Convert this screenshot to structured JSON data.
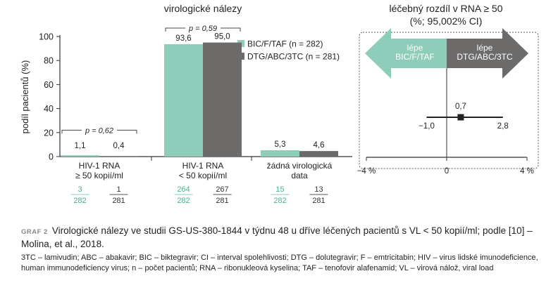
{
  "colors": {
    "bic": "#8ecdb9",
    "dtg": "#6d6a6a",
    "arrow_left": "#8ecdb9",
    "arrow_right": "#6d6a6a",
    "axis": "#333333",
    "frac_line": "#8ecdb9"
  },
  "chart_data": [
    {
      "type": "bar",
      "title": "virologické nálezy",
      "ylabel": "podíl pacientů (%)",
      "ylim": [
        0,
        100
      ],
      "yticks": [
        "0",
        "20",
        "40",
        "60",
        "80",
        "100"
      ],
      "categories": [
        "HIV-1 RNA\n≥ 50 kopií/ml",
        "HIV-1 RNA\n< 50 kopií/ml",
        "žádná virologická\ndata"
      ],
      "category_lines": [
        [
          "HIV-1 RNA",
          "≥ 50 kopií/ml"
        ],
        [
          "HIV-1 RNA",
          "< 50 kopií/ml"
        ],
        [
          "žádná virologická",
          "data"
        ]
      ],
      "series": [
        {
          "name": "BIC/F/TAF (n = 282)",
          "values": [
            1.1,
            93.6,
            5.3
          ],
          "labels": [
            "1,1",
            "93,6",
            "5,3"
          ],
          "n_num": [
            "3",
            "264",
            "15"
          ],
          "n_den": [
            "282",
            "282",
            "282"
          ]
        },
        {
          "name": "DTG/ABC/3TC (n = 281)",
          "values": [
            0.4,
            95.0,
            4.6
          ],
          "labels": [
            "0,4",
            "95,0",
            "4,6"
          ],
          "n_num": [
            "1",
            "267",
            "13"
          ],
          "n_den": [
            "281",
            "281",
            "281"
          ]
        }
      ],
      "annotations": [
        {
          "text": "p = 0,59",
          "category_index": 1,
          "height": 100
        },
        {
          "text": "p = 0,62",
          "category_index": 0,
          "height": 22
        }
      ],
      "legend": "top-right",
      "grid": false
    },
    {
      "type": "scatter",
      "title": "léčebný rozdíl v RNA ≥ 50",
      "subtitle": "(%; 95,002% CI)",
      "xlim": [
        -4,
        4
      ],
      "xtick_labels": [
        "−4 %",
        "0",
        "4 %"
      ],
      "point": {
        "x": 0.7,
        "ci_low": -1.0,
        "ci_high": 2.8,
        "label": "0,7",
        "ci_low_label": "−1,0",
        "ci_high_label": "2,8"
      },
      "arrows": [
        {
          "direction": "left",
          "lines": [
            "lépe",
            "BIC/F/TAF"
          ]
        },
        {
          "direction": "right",
          "lines": [
            "lépe",
            "DTG/ABC/3TC"
          ]
        }
      ]
    }
  ],
  "caption": {
    "label": "GRAF 2",
    "text": "Virologické nálezy ve studii GS-US-380-1844 v týdnu 48 u dříve léčených pacientů s VL < 50 kopií/ml; podle [10] – Molina, et al., 2018."
  },
  "abbreviations": "3TC – lamivudin; ABC – abakavir; BIC – biktegravir; CI – interval spolehlivosti; DTG – dolutegravir; F – emtricitabin; HIV – virus lidské imunodeficience, human immunodeficiency virus; n – počet pacientů; RNA – ribonukleová kyselina; TAF – tenofovir alafenamid; VL – virová nálož, viral load"
}
